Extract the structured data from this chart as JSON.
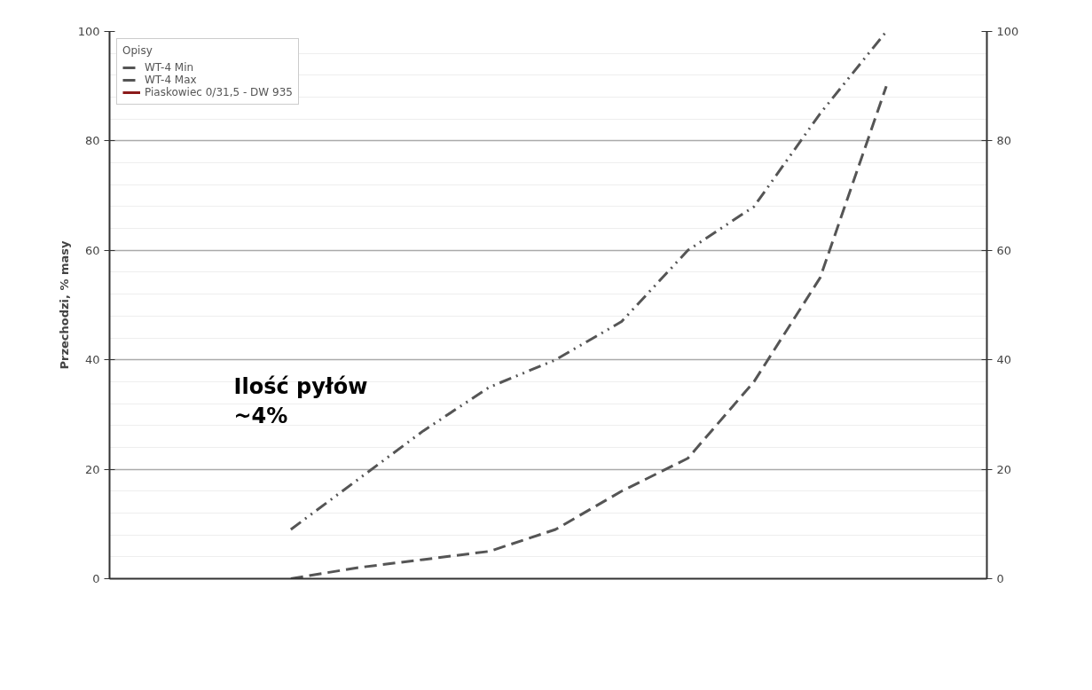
{
  "chart_data": {
    "type": "line",
    "ylabel": "Przechodzi, % masy",
    "legend_title": "Opisy",
    "categories": [
      null,
      null,
      null,
      null,
      null,
      null,
      null,
      null,
      null,
      null,
      null,
      null,
      null
    ],
    "series": [
      {
        "name": "WT-4 Min",
        "color": "#555555",
        "line_style": "dashed",
        "values": [
          null,
          null,
          0,
          2,
          3.5,
          5,
          9,
          16,
          22,
          36,
          55,
          90,
          null
        ]
      },
      {
        "name": "WT-4 Max",
        "color": "#555555",
        "line_style": "dotted",
        "values": [
          null,
          null,
          9,
          18,
          27,
          35,
          40,
          47,
          60,
          68,
          85,
          100,
          null
        ]
      },
      {
        "name": "Piaskowiec 0/31,5 - DW 935",
        "color": "#8b1a1a",
        "line_style": "solid",
        "values": [
          null,
          null,
          null,
          null,
          null,
          null,
          null,
          null,
          null,
          null,
          null,
          null,
          null
        ]
      }
    ],
    "ylim": [
      0,
      100
    ],
    "yticks": [
      0,
      20,
      40,
      60,
      80,
      100
    ],
    "y2lim": [
      0,
      100
    ],
    "y2ticks": [
      0,
      20,
      40,
      60,
      80,
      100
    ],
    "grid": "y",
    "legend": "top left",
    "marker": "none",
    "annotations": [
      "Ilość pyłów\n~4%"
    ]
  }
}
